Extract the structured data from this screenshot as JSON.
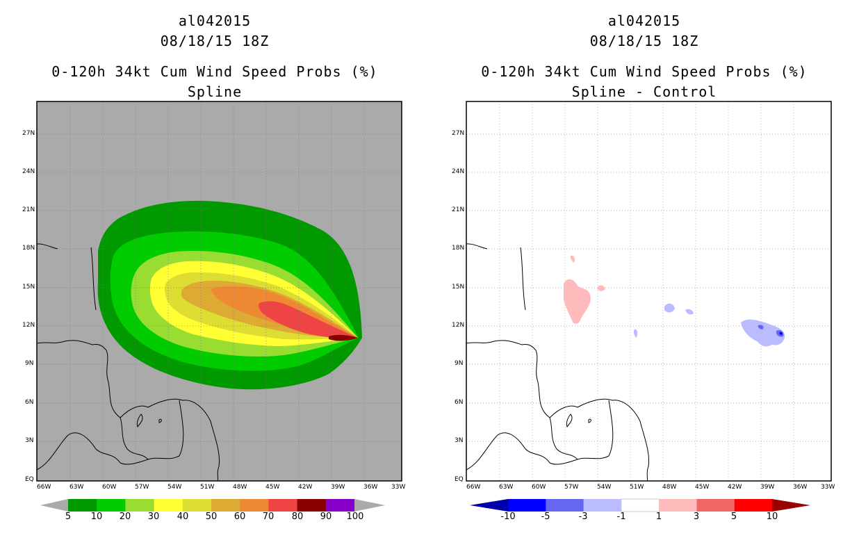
{
  "panels": [
    {
      "storm_id": "al042015",
      "datetime": "08/18/15 18Z",
      "product": "0-120h 34kt Cum Wind Speed Probs (%)",
      "subtitle": "Spline",
      "background": "#aaaaaa",
      "colorbar": {
        "colors": [
          "#009900",
          "#00cc00",
          "#99dd33",
          "#ffff33",
          "#dddd33",
          "#ddaa33",
          "#ee8833",
          "#ee4444",
          "#880000",
          "#8800cc"
        ],
        "labels": [
          "5",
          "10",
          "20",
          "30",
          "40",
          "50",
          "60",
          "70",
          "80",
          "90",
          "100"
        ]
      }
    },
    {
      "storm_id": "al042015",
      "datetime": "08/18/15 18Z",
      "product": "0-120h 34kt Cum Wind Speed Probs (%)",
      "subtitle": "Spline - Control",
      "background": "#ffffff",
      "colorbar": {
        "colors": [
          "#0000aa",
          "#0000ff",
          "#6666ee",
          "#bbbbff",
          "#ffffff",
          "#ffbbbb",
          "#ee6666",
          "#ff0000",
          "#990000"
        ],
        "labels": [
          "-10",
          "-5",
          "-3",
          "-1",
          "1",
          "3",
          "5",
          "10"
        ]
      }
    }
  ],
  "axes": {
    "lat_labels": [
      "27N",
      "24N",
      "21N",
      "18N",
      "15N",
      "12N",
      "9N",
      "6N",
      "3N",
      "EQ"
    ],
    "lon_labels": [
      "66W",
      "63W",
      "60W",
      "57W",
      "54W",
      "51W",
      "48W",
      "45W",
      "42W",
      "39W",
      "36W",
      "33W"
    ]
  }
}
